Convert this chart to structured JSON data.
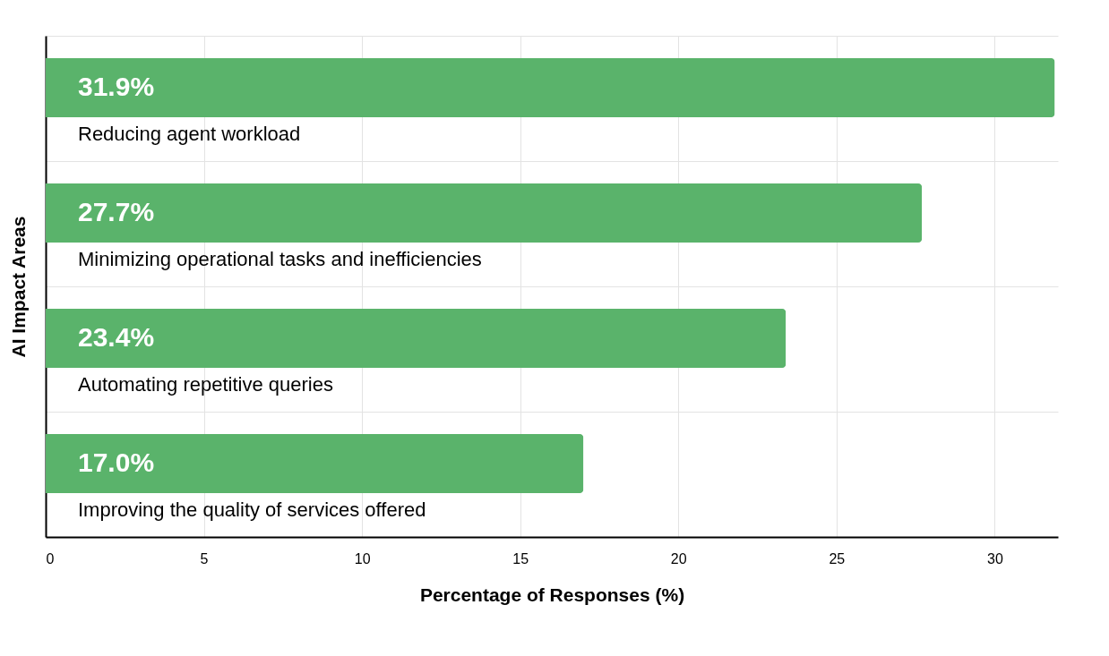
{
  "chart_data": {
    "type": "bar",
    "orientation": "horizontal",
    "xlabel": "Percentage of Responses (%)",
    "ylabel": "AI Impact Areas",
    "categories": [
      "Reducing agent workload",
      "Minimizing operational tasks and inefficiencies",
      "Automating repetitive queries",
      "Improving the quality of services offered"
    ],
    "values": [
      31.9,
      27.7,
      23.4,
      17.0
    ],
    "value_labels": [
      "31.9%",
      "27.7%",
      "23.4%",
      "17.0%"
    ],
    "color": "#5ab36b",
    "xlim": [
      0,
      32
    ],
    "xticks": [
      0,
      5,
      10,
      15,
      20,
      25,
      30
    ],
    "grid": true
  }
}
